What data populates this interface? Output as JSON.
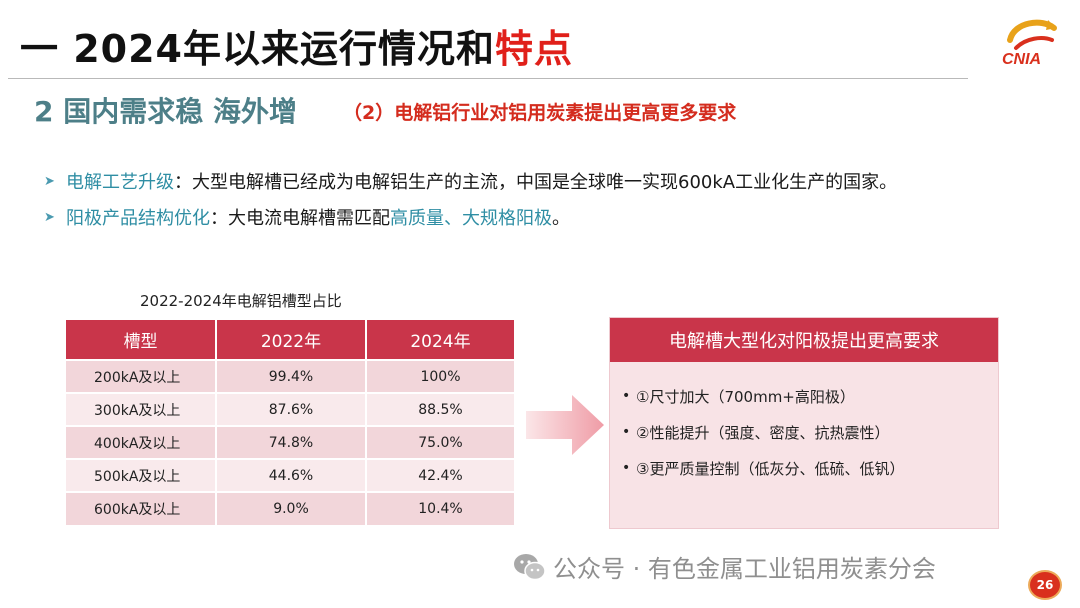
{
  "slide": {
    "title_main": "一 2024年以来运行情况和",
    "title_highlight": "特点",
    "logo_text": "CNIA",
    "subtitle": "2 国内需求稳 海外增",
    "subtitle_note": "（2）电解铝行业对铝用炭素提出更高更多要求",
    "bullets": [
      {
        "key": "电解工艺升级",
        "text": "：大型电解槽已经成为电解铝生产的主流，中国是全球唯一实现600kA工业化生产的国家。",
        "highlight": ""
      },
      {
        "key": "阳极产品结构优化",
        "text": "：大电流电解槽需匹配",
        "highlight": "高质量、大规格阳极",
        "tail": "。"
      }
    ],
    "page_number": "26"
  },
  "table": {
    "caption": "2022-2024年电解铝槽型占比",
    "headers": [
      "槽型",
      "2022年",
      "2024年"
    ],
    "rows": [
      [
        "200kA及以上",
        "99.4%",
        "100%"
      ],
      [
        "300kA及以上",
        "87.6%",
        "88.5%"
      ],
      [
        "400kA及以上",
        "74.8%",
        "75.0%"
      ],
      [
        "500kA及以上",
        "44.6%",
        "42.4%"
      ],
      [
        "600kA及以上",
        "9.0%",
        "10.4%"
      ]
    ]
  },
  "panel": {
    "title": "电解槽大型化对阳极提出更高要求",
    "items": [
      "①尺寸加大（700mm+高阳极）",
      "②性能提升（强度、密度、抗热震性）",
      "③更严质量控制（低灰分、低硫、低钒）"
    ]
  },
  "watermark": "公众号 · 有色金属工业铝用炭素分会",
  "colors": {
    "accent_red": "#e0201a",
    "table_header": "#c9354a",
    "subtitle_teal": "#4d7f88",
    "bullet_key": "#2f8ea4"
  }
}
